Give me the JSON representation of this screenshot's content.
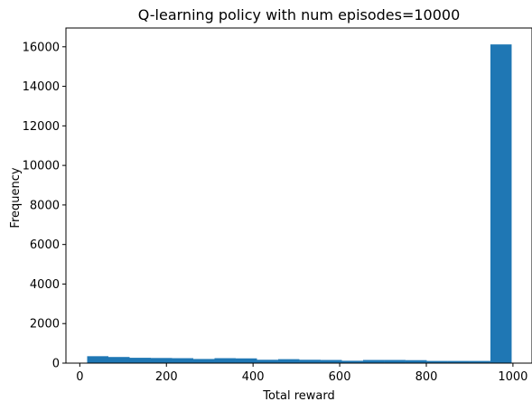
{
  "chart_data": {
    "type": "bar",
    "title": "Q-learning policy with num episodes=10000",
    "xlabel": "Total reward",
    "ylabel": "Frequency",
    "xlim": [
      -32,
      1044
    ],
    "ylim": [
      0,
      16950
    ],
    "x_ticks": [
      0,
      200,
      400,
      600,
      800,
      1000
    ],
    "y_ticks": [
      0,
      2000,
      4000,
      6000,
      8000,
      10000,
      12000,
      14000,
      16000
    ],
    "bar_color": "#1f77b4",
    "bins": [
      {
        "x0": 17,
        "x1": 66,
        "value": 350
      },
      {
        "x0": 66,
        "x1": 115,
        "value": 310
      },
      {
        "x0": 115,
        "x1": 164,
        "value": 270
      },
      {
        "x0": 164,
        "x1": 213,
        "value": 260
      },
      {
        "x0": 213,
        "x1": 262,
        "value": 250
      },
      {
        "x0": 262,
        "x1": 311,
        "value": 210
      },
      {
        "x0": 311,
        "x1": 360,
        "value": 250
      },
      {
        "x0": 360,
        "x1": 409,
        "value": 240
      },
      {
        "x0": 409,
        "x1": 458,
        "value": 170
      },
      {
        "x0": 458,
        "x1": 507,
        "value": 200
      },
      {
        "x0": 507,
        "x1": 556,
        "value": 170
      },
      {
        "x0": 556,
        "x1": 605,
        "value": 160
      },
      {
        "x0": 605,
        "x1": 654,
        "value": 120
      },
      {
        "x0": 654,
        "x1": 703,
        "value": 160
      },
      {
        "x0": 703,
        "x1": 752,
        "value": 160
      },
      {
        "x0": 752,
        "x1": 801,
        "value": 150
      },
      {
        "x0": 801,
        "x1": 850,
        "value": 110
      },
      {
        "x0": 850,
        "x1": 899,
        "value": 110
      },
      {
        "x0": 899,
        "x1": 948,
        "value": 110
      },
      {
        "x0": 948,
        "x1": 997,
        "value": 16120
      }
    ]
  }
}
